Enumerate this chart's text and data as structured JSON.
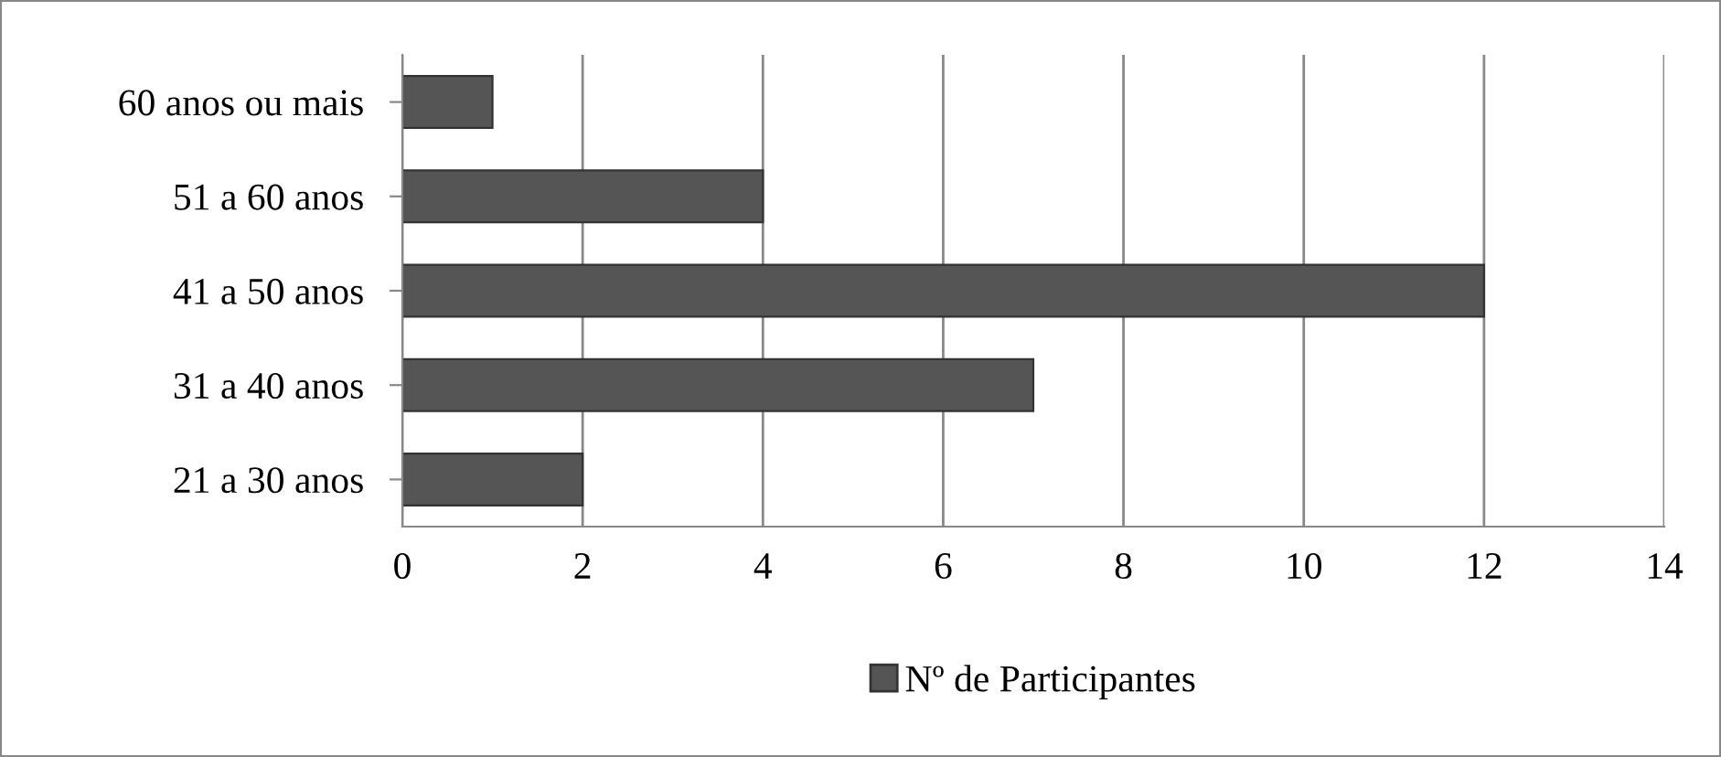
{
  "chart_data": {
    "type": "bar",
    "orientation": "horizontal",
    "categories": [
      "60 anos ou mais",
      "51 a 60 anos",
      "41 a 50 anos",
      "31 a 40 anos",
      "21 a 30 anos"
    ],
    "series": [
      {
        "name": "Nº de Participantes",
        "color": "#555555",
        "values": [
          1,
          4,
          12,
          7,
          2
        ]
      }
    ],
    "xlim": [
      0,
      14
    ],
    "xticks": [
      0,
      2,
      4,
      6,
      8,
      10,
      12,
      14
    ],
    "grid": "x",
    "legend": "bottom"
  }
}
